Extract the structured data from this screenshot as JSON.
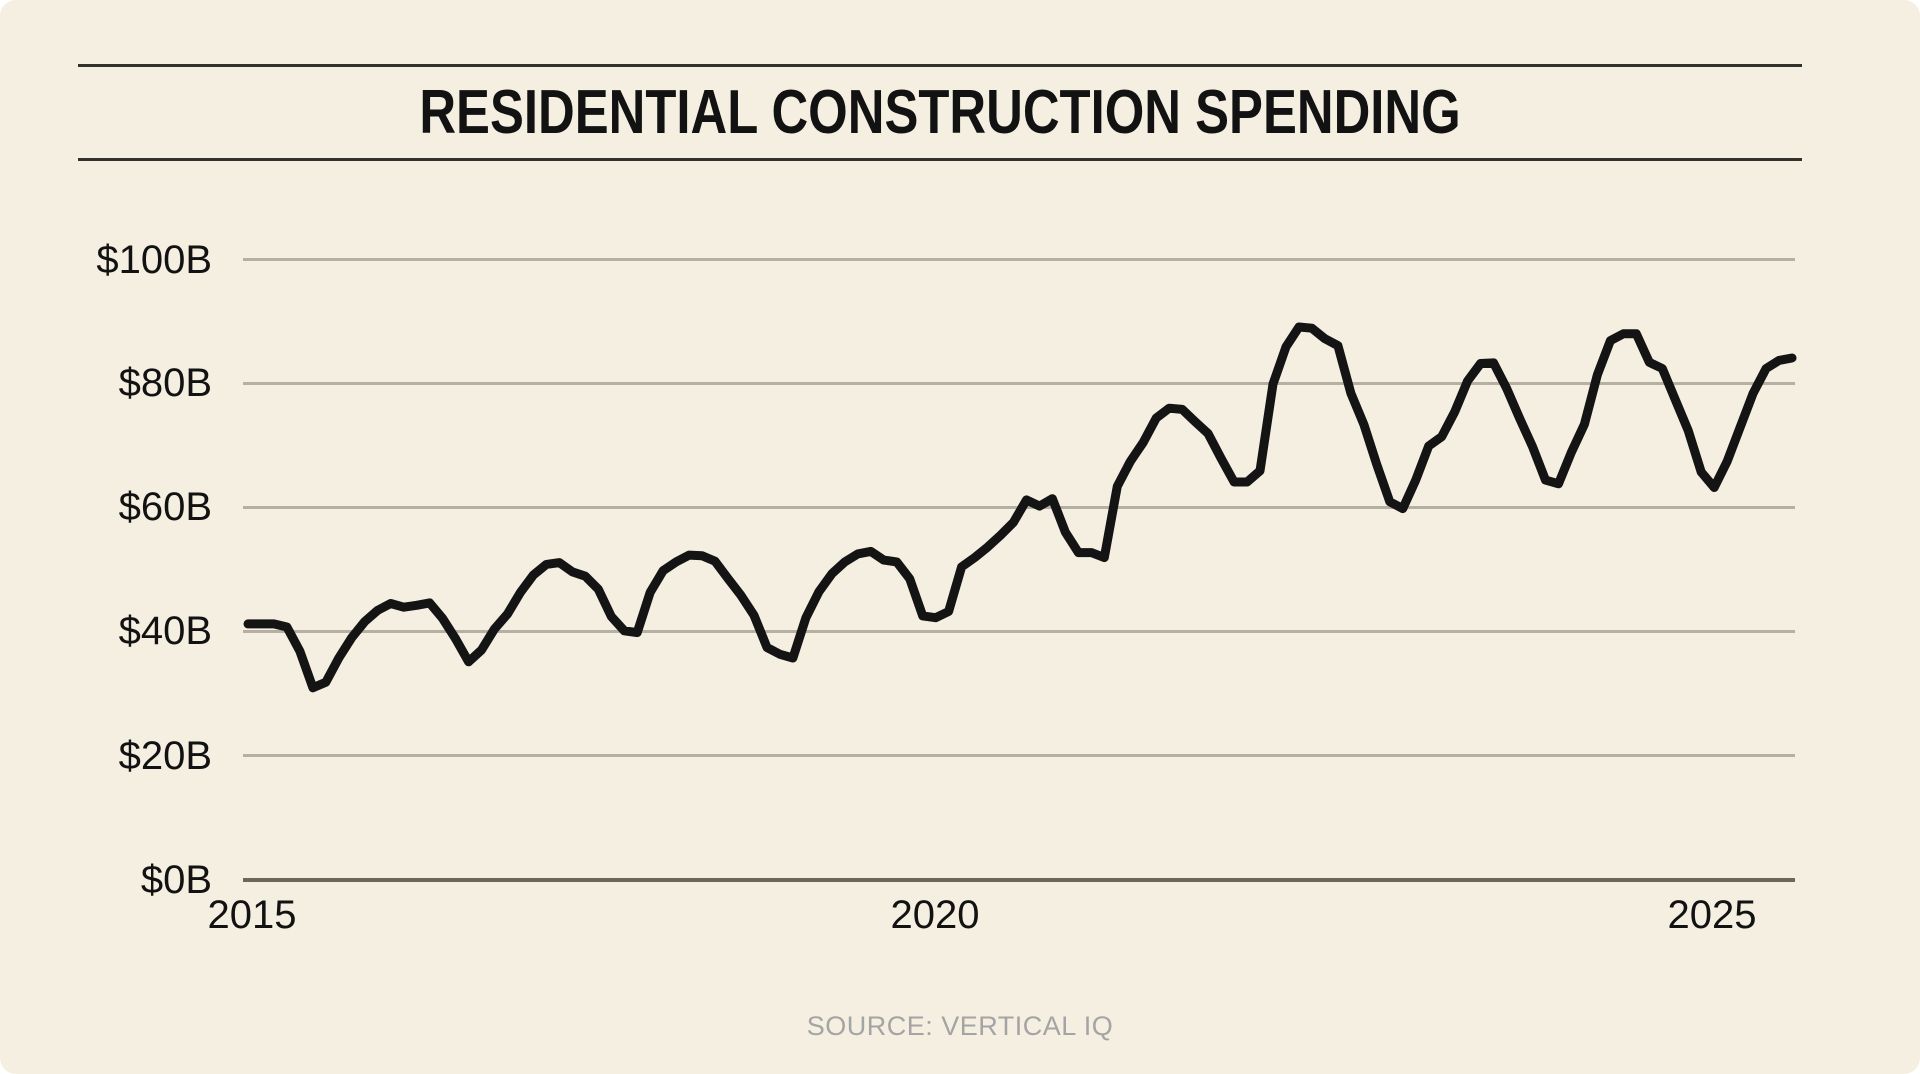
{
  "title": "RESIDENTIAL CONSTRUCTION SPENDING",
  "source": "SOURCE: VERTICAL IQ",
  "y_axis": {
    "labels": [
      "$100B",
      "$80B",
      "$60B",
      "$40B",
      "$20B",
      "$0B"
    ]
  },
  "x_axis": {
    "labels": [
      "2015",
      "2020",
      "2025"
    ]
  },
  "colors": {
    "background": "#F5EFE1",
    "line": "#141414",
    "gridline": "#B6B0A4",
    "axis_line": "#6B675D",
    "title_rule": "#33312B",
    "text": "#121212",
    "source_text": "#A4A4A4"
  },
  "chart_data": {
    "type": "line",
    "title": "RESIDENTIAL CONSTRUCTION SPENDING",
    "xlabel": "",
    "ylabel": "",
    "unit": "billions of USD per month",
    "x_range": [
      2015.0,
      2025.6
    ],
    "frequency": "monthly",
    "ylim": [
      0,
      100
    ],
    "yticks": [
      "$0B",
      "$20B",
      "$40B",
      "$60B",
      "$80B",
      "$100B"
    ],
    "xticks": [
      "2015",
      "2020",
      "2025"
    ],
    "grid": true,
    "legend": false,
    "source": "SOURCE: VERTICAL IQ",
    "series": [
      {
        "name": "Residential construction spending ($B)",
        "values": [
          41.3,
          41.3,
          41.3,
          40.8,
          36.9,
          31.0,
          31.9,
          35.8,
          39.1,
          41.7,
          43.5,
          44.6,
          44.0,
          44.3,
          44.7,
          42.2,
          38.9,
          35.2,
          37.1,
          40.5,
          42.9,
          46.4,
          49.2,
          50.9,
          51.2,
          49.7,
          49.0,
          46.9,
          42.5,
          40.2,
          39.9,
          46.4,
          49.9,
          51.3,
          52.4,
          52.3,
          51.4,
          48.6,
          45.9,
          42.7,
          37.5,
          36.4,
          35.8,
          42.3,
          46.5,
          49.4,
          51.3,
          52.6,
          53.0,
          51.6,
          51.3,
          48.6,
          42.6,
          42.3,
          43.3,
          50.5,
          52.0,
          53.7,
          55.6,
          57.7,
          61.3,
          60.3,
          61.5,
          56.1,
          52.8,
          52.8,
          52.0,
          63.5,
          67.5,
          70.6,
          74.5,
          76.1,
          75.9,
          73.9,
          72.0,
          68.0,
          64.2,
          64.2,
          66.0,
          80.0,
          86.0,
          89.2,
          89.0,
          87.3,
          86.2,
          78.5,
          73.5,
          67.0,
          61.0,
          59.9,
          64.5,
          70.0,
          71.5,
          75.5,
          80.5,
          83.3,
          83.4,
          79.3,
          74.5,
          69.9,
          64.5,
          63.9,
          69.0,
          73.5,
          81.5,
          87.0,
          88.1,
          88.1,
          83.5,
          82.5,
          77.5,
          72.5,
          65.8,
          63.3,
          67.5,
          73.0,
          78.5,
          82.5,
          83.8,
          84.2
        ]
      }
    ]
  }
}
